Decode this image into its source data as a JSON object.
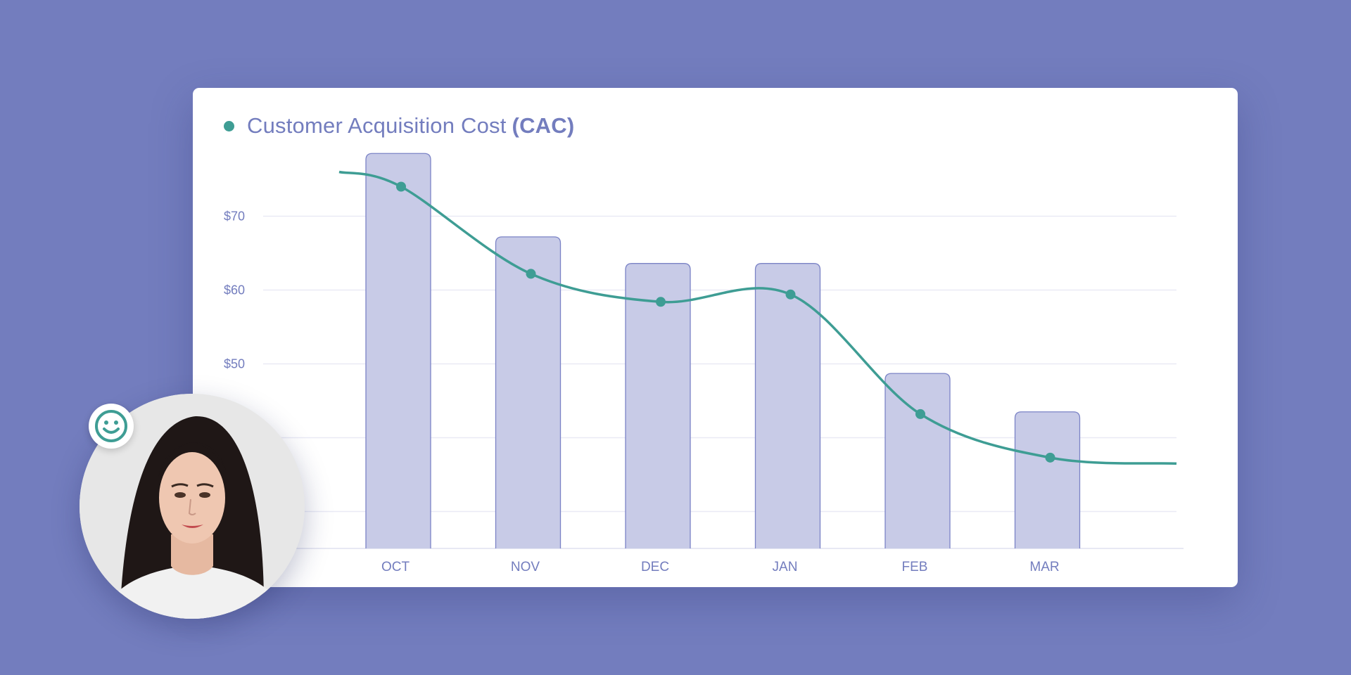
{
  "header": {
    "title_main": "Customer Acquisition Cost",
    "title_bold": "(CAC)"
  },
  "colors": {
    "background": "#737dbe",
    "bar_fill": "#c8cbe7",
    "bar_stroke": "#7b83c6",
    "line": "#3e9d94",
    "text": "#737dbe"
  },
  "chart_data": {
    "type": "bar",
    "title": "Customer Acquisition Cost (CAC)",
    "categories": [
      "OCT",
      "NOV",
      "DEC",
      "JAN",
      "FEB",
      "MAR"
    ],
    "ytick_labels": [
      "$70",
      "$60",
      "$50"
    ],
    "ylim": [
      25,
      80
    ],
    "yticks": [
      30,
      40,
      50,
      60,
      70
    ],
    "grid": true,
    "series": [
      {
        "type": "bar",
        "values": [
          78.5,
          67.2,
          63.6,
          63.6,
          48.7,
          43.5
        ]
      },
      {
        "type": "line",
        "smooth": true,
        "values": [
          74.0,
          62.2,
          58.4,
          59.4,
          43.2,
          37.3
        ],
        "start_value": 76.0,
        "end_value": 36.5
      }
    ]
  },
  "overlay": {
    "avatar": "woman-portrait",
    "badge_icon": "smile-icon"
  }
}
